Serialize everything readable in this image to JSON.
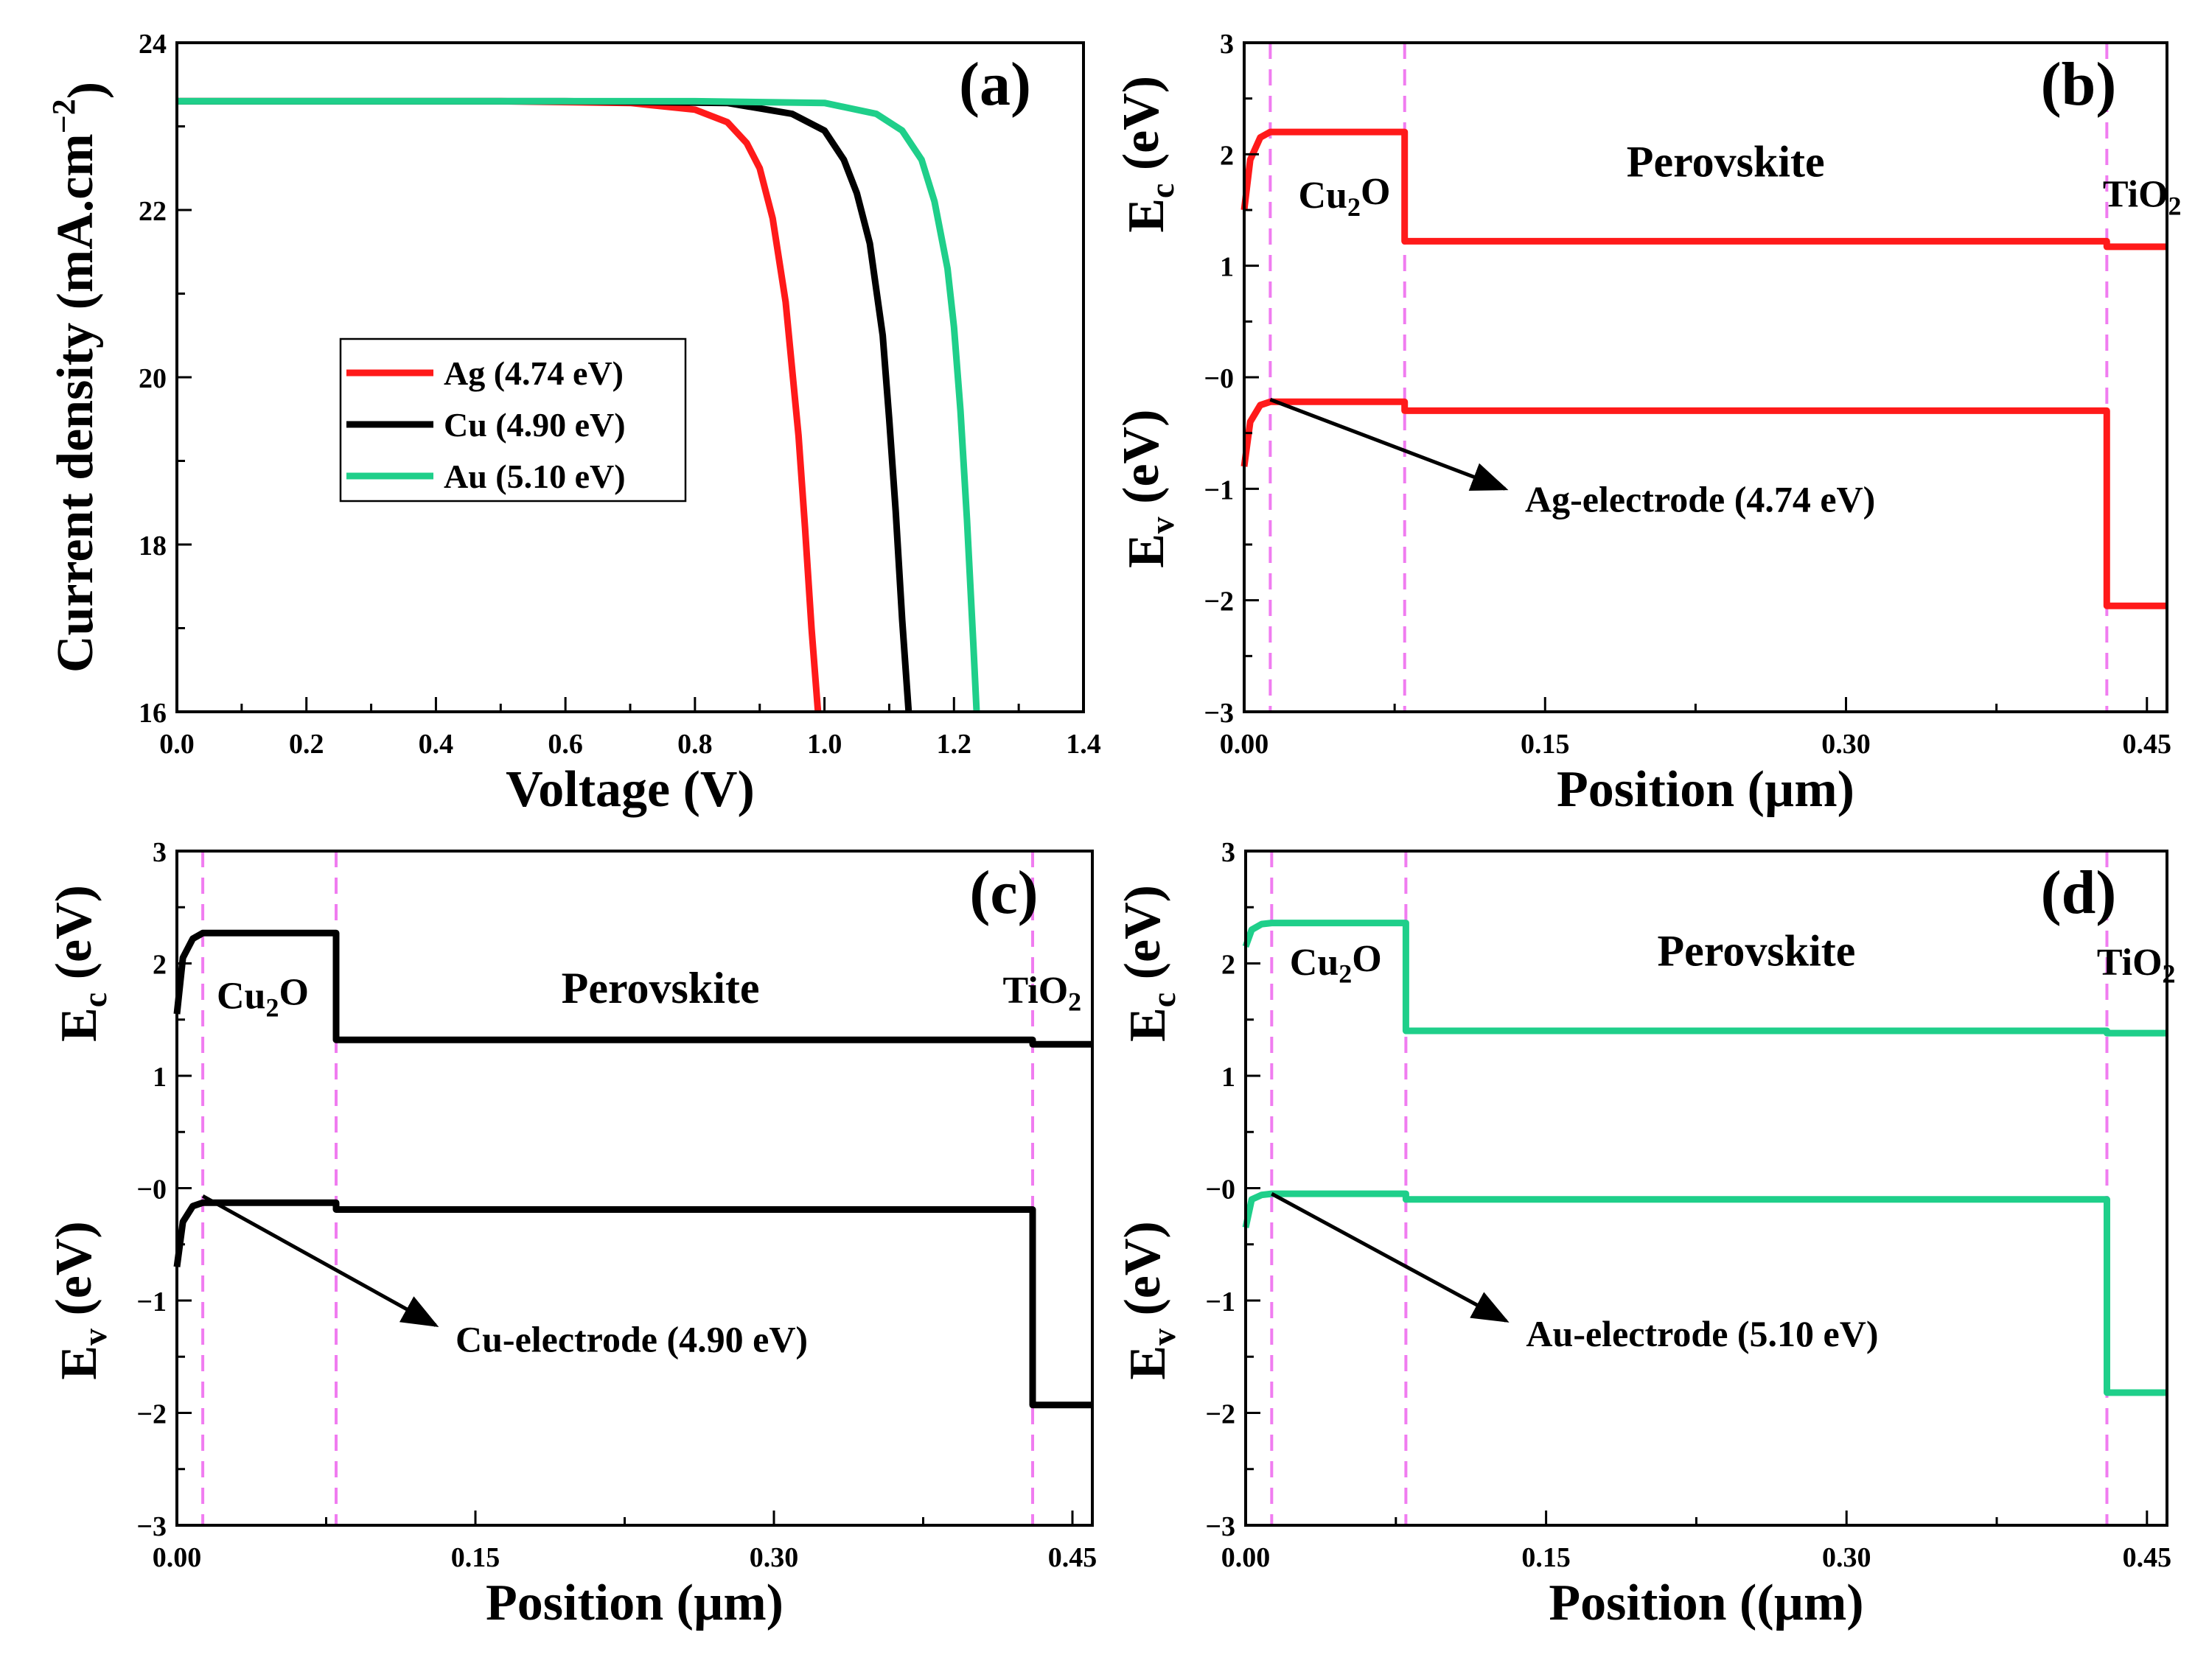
{
  "colors": {
    "ag": "#ff1a1a",
    "cu": "#000000",
    "au": "#1fcf8a",
    "interface": "#f07cf0"
  },
  "chart_data": [
    {
      "id": "a",
      "type": "line",
      "panel_label": "(a)",
      "xlabel": "Voltage (V)",
      "ylabel": "Current density (mA.cm",
      "ylabel_sup": "−2",
      "ylabel_close": ")",
      "xlim": [
        0.0,
        1.4
      ],
      "ylim": [
        16,
        24
      ],
      "xticks": [
        0.0,
        0.2,
        0.4,
        0.6,
        0.8,
        1.0,
        1.2,
        1.4
      ],
      "xtick_labels": [
        "0.0",
        "0.2",
        "0.4",
        "0.6",
        "0.8",
        "1.0",
        "1.2",
        "1.4"
      ],
      "yticks": [
        16,
        18,
        20,
        22,
        24
      ],
      "ytick_labels": [
        "16",
        "18",
        "20",
        "22",
        "24"
      ],
      "legend_position": "center-left",
      "series": [
        {
          "name": "Ag (4.74 eV)",
          "color": "#ff1a1a",
          "x": [
            0,
            0.5,
            0.7,
            0.8,
            0.85,
            0.88,
            0.9,
            0.92,
            0.94,
            0.96,
            0.97,
            0.98,
            0.99
          ],
          "y": [
            23.3,
            23.3,
            23.28,
            23.2,
            23.05,
            22.8,
            22.5,
            21.9,
            20.9,
            19.3,
            18.2,
            17.0,
            16.0
          ]
        },
        {
          "name": "Cu (4.90 eV)",
          "color": "#000000",
          "x": [
            0,
            0.6,
            0.85,
            0.95,
            1.0,
            1.03,
            1.05,
            1.07,
            1.09,
            1.1,
            1.11,
            1.12,
            1.13
          ],
          "y": [
            23.3,
            23.3,
            23.28,
            23.15,
            22.95,
            22.6,
            22.2,
            21.6,
            20.5,
            19.5,
            18.4,
            17.1,
            16.0
          ]
        },
        {
          "name": "Au (5.10 eV)",
          "color": "#1fcf8a",
          "x": [
            0,
            0.8,
            1.0,
            1.08,
            1.12,
            1.15,
            1.17,
            1.19,
            1.2,
            1.21,
            1.22,
            1.23,
            1.235
          ],
          "y": [
            23.3,
            23.3,
            23.28,
            23.15,
            22.95,
            22.6,
            22.1,
            21.3,
            20.6,
            19.6,
            18.3,
            16.8,
            16.0
          ]
        }
      ]
    },
    {
      "id": "b",
      "type": "line",
      "panel_label": "(b)",
      "xlabel": "Position (µm)",
      "ylabel_top": "E",
      "ylabel_top_sub": "c",
      "ylabel_top_rest": " (eV)",
      "ylabel_bottom": "E",
      "ylabel_bottom_sub": "v",
      "ylabel_bottom_rest": " (eV)",
      "xlim": [
        0.0,
        0.46
      ],
      "ylim": [
        -3,
        3
      ],
      "xticks": [
        0.0,
        0.15,
        0.3,
        0.45
      ],
      "xtick_labels": [
        "0.00",
        "0.15",
        "0.30",
        "0.45"
      ],
      "yticks": [
        -3,
        -2,
        -1,
        0,
        1,
        2,
        3
      ],
      "ytick_labels": [
        "−3",
        "−2",
        "−1",
        "−0",
        "1",
        "2",
        "3"
      ],
      "interfaces": [
        0.013,
        0.08,
        0.43
      ],
      "region_labels": [
        {
          "text": "Cu",
          "sub": "2",
          "rest": "O",
          "x": 0.027,
          "y": 1.52,
          "size": "small"
        },
        {
          "text": "Perovskite",
          "x": 0.24,
          "y": 1.8,
          "size": "large"
        },
        {
          "text": "TiO",
          "sub": "2",
          "rest": "",
          "x": 0.428,
          "y": 1.53,
          "size": "small"
        }
      ],
      "annotation": {
        "text": "Ag-electrode (4.74 eV)",
        "arrow_from": [
          0.013,
          -0.2
        ],
        "arrow_to": [
          0.13,
          -1.0
        ],
        "text_at": [
          0.14,
          -1.1
        ]
      },
      "series": [
        {
          "name": "Ec",
          "color": "#ff1a1a",
          "x": [
            0,
            0.003,
            0.008,
            0.013,
            0.08,
            0.08,
            0.43,
            0.43,
            0.46
          ],
          "y": [
            1.5,
            1.95,
            2.15,
            2.2,
            2.2,
            1.22,
            1.22,
            1.17,
            1.17
          ]
        },
        {
          "name": "Ev",
          "color": "#ff1a1a",
          "x": [
            0,
            0.003,
            0.008,
            0.013,
            0.08,
            0.08,
            0.43,
            0.43,
            0.46
          ],
          "y": [
            -0.8,
            -0.4,
            -0.25,
            -0.22,
            -0.22,
            -0.3,
            -0.3,
            -2.05,
            -2.05
          ]
        }
      ]
    },
    {
      "id": "c",
      "type": "line",
      "panel_label": "(c)",
      "xlabel": "Position (µm)",
      "ylabel_top": "E",
      "ylabel_top_sub": "c",
      "ylabel_top_rest": " (eV)",
      "ylabel_bottom": "E",
      "ylabel_bottom_sub": "v",
      "ylabel_bottom_rest": " (eV)",
      "xlim": [
        0.0,
        0.46
      ],
      "ylim": [
        -3,
        3
      ],
      "xticks": [
        0.0,
        0.15,
        0.3,
        0.45
      ],
      "xtick_labels": [
        "0.00",
        "0.15",
        "0.30",
        "0.45"
      ],
      "yticks": [
        -3,
        -2,
        -1,
        0,
        1,
        2,
        3
      ],
      "ytick_labels": [
        "−3",
        "−2",
        "−1",
        "−0",
        "1",
        "2",
        "3"
      ],
      "interfaces": [
        0.013,
        0.08,
        0.43
      ],
      "region_labels": [
        {
          "text": "Cu",
          "sub": "2",
          "rest": "O",
          "x": 0.02,
          "y": 1.6,
          "size": "small"
        },
        {
          "text": "Perovskite",
          "x": 0.243,
          "y": 1.65,
          "size": "large"
        },
        {
          "text": "TiO",
          "sub": "2",
          "rest": "",
          "x": 0.415,
          "y": 1.65,
          "size": "small"
        }
      ],
      "annotation": {
        "text": "Cu-electrode (4.90 eV)",
        "arrow_from": [
          0.013,
          -0.07
        ],
        "arrow_to": [
          0.13,
          -1.22
        ],
        "text_at": [
          0.14,
          -1.35
        ]
      },
      "series": [
        {
          "name": "Ec",
          "color": "#000000",
          "x": [
            0,
            0.003,
            0.008,
            0.013,
            0.08,
            0.08,
            0.43,
            0.43,
            0.46
          ],
          "y": [
            1.55,
            2.05,
            2.22,
            2.27,
            2.27,
            1.32,
            1.32,
            1.28,
            1.28
          ]
        },
        {
          "name": "Ev",
          "color": "#000000",
          "x": [
            0,
            0.003,
            0.008,
            0.013,
            0.08,
            0.08,
            0.43,
            0.43,
            0.46
          ],
          "y": [
            -0.7,
            -0.3,
            -0.16,
            -0.13,
            -0.13,
            -0.19,
            -0.19,
            -1.93,
            -1.93
          ]
        }
      ]
    },
    {
      "id": "d",
      "type": "line",
      "panel_label": "(d)",
      "xlabel": "Position ((µm)",
      "ylabel_top": "E",
      "ylabel_top_sub": "c",
      "ylabel_top_rest": " (eV)",
      "ylabel_bottom": "E",
      "ylabel_bottom_sub": "v",
      "ylabel_bottom_rest": " (eV)",
      "xlim": [
        0.0,
        0.46
      ],
      "ylim": [
        -3,
        3
      ],
      "xticks": [
        0.0,
        0.15,
        0.3,
        0.45
      ],
      "xtick_labels": [
        "0.00",
        "0.15",
        "0.30",
        "0.45"
      ],
      "yticks": [
        -3,
        -2,
        -1,
        0,
        1,
        2,
        3
      ],
      "ytick_labels": [
        "−3",
        "−2",
        "−1",
        "−0",
        "1",
        "2",
        "3"
      ],
      "interfaces": [
        0.013,
        0.08,
        0.43
      ],
      "region_labels": [
        {
          "text": "Cu",
          "sub": "2",
          "rest": "O",
          "x": 0.022,
          "y": 1.9,
          "size": "small"
        },
        {
          "text": "Perovskite",
          "x": 0.255,
          "y": 1.98,
          "size": "large"
        },
        {
          "text": "TiO",
          "sub": "2",
          "rest": "",
          "x": 0.425,
          "y": 1.9,
          "size": "small"
        }
      ],
      "annotation": {
        "text": "Au-electrode (5.10 eV)",
        "arrow_from": [
          0.013,
          -0.05
        ],
        "arrow_to": [
          0.13,
          -1.18
        ],
        "text_at": [
          0.14,
          -1.3
        ]
      },
      "series": [
        {
          "name": "Ec",
          "color": "#1fcf8a",
          "x": [
            0,
            0.003,
            0.008,
            0.013,
            0.08,
            0.08,
            0.43,
            0.43,
            0.46
          ],
          "y": [
            2.15,
            2.3,
            2.35,
            2.36,
            2.36,
            1.4,
            1.4,
            1.38,
            1.38
          ]
        },
        {
          "name": "Ev",
          "color": "#1fcf8a",
          "x": [
            0,
            0.003,
            0.008,
            0.013,
            0.08,
            0.08,
            0.43,
            0.43,
            0.46
          ],
          "y": [
            -0.35,
            -0.1,
            -0.06,
            -0.05,
            -0.05,
            -0.1,
            -0.1,
            -1.82,
            -1.82
          ]
        }
      ]
    }
  ]
}
